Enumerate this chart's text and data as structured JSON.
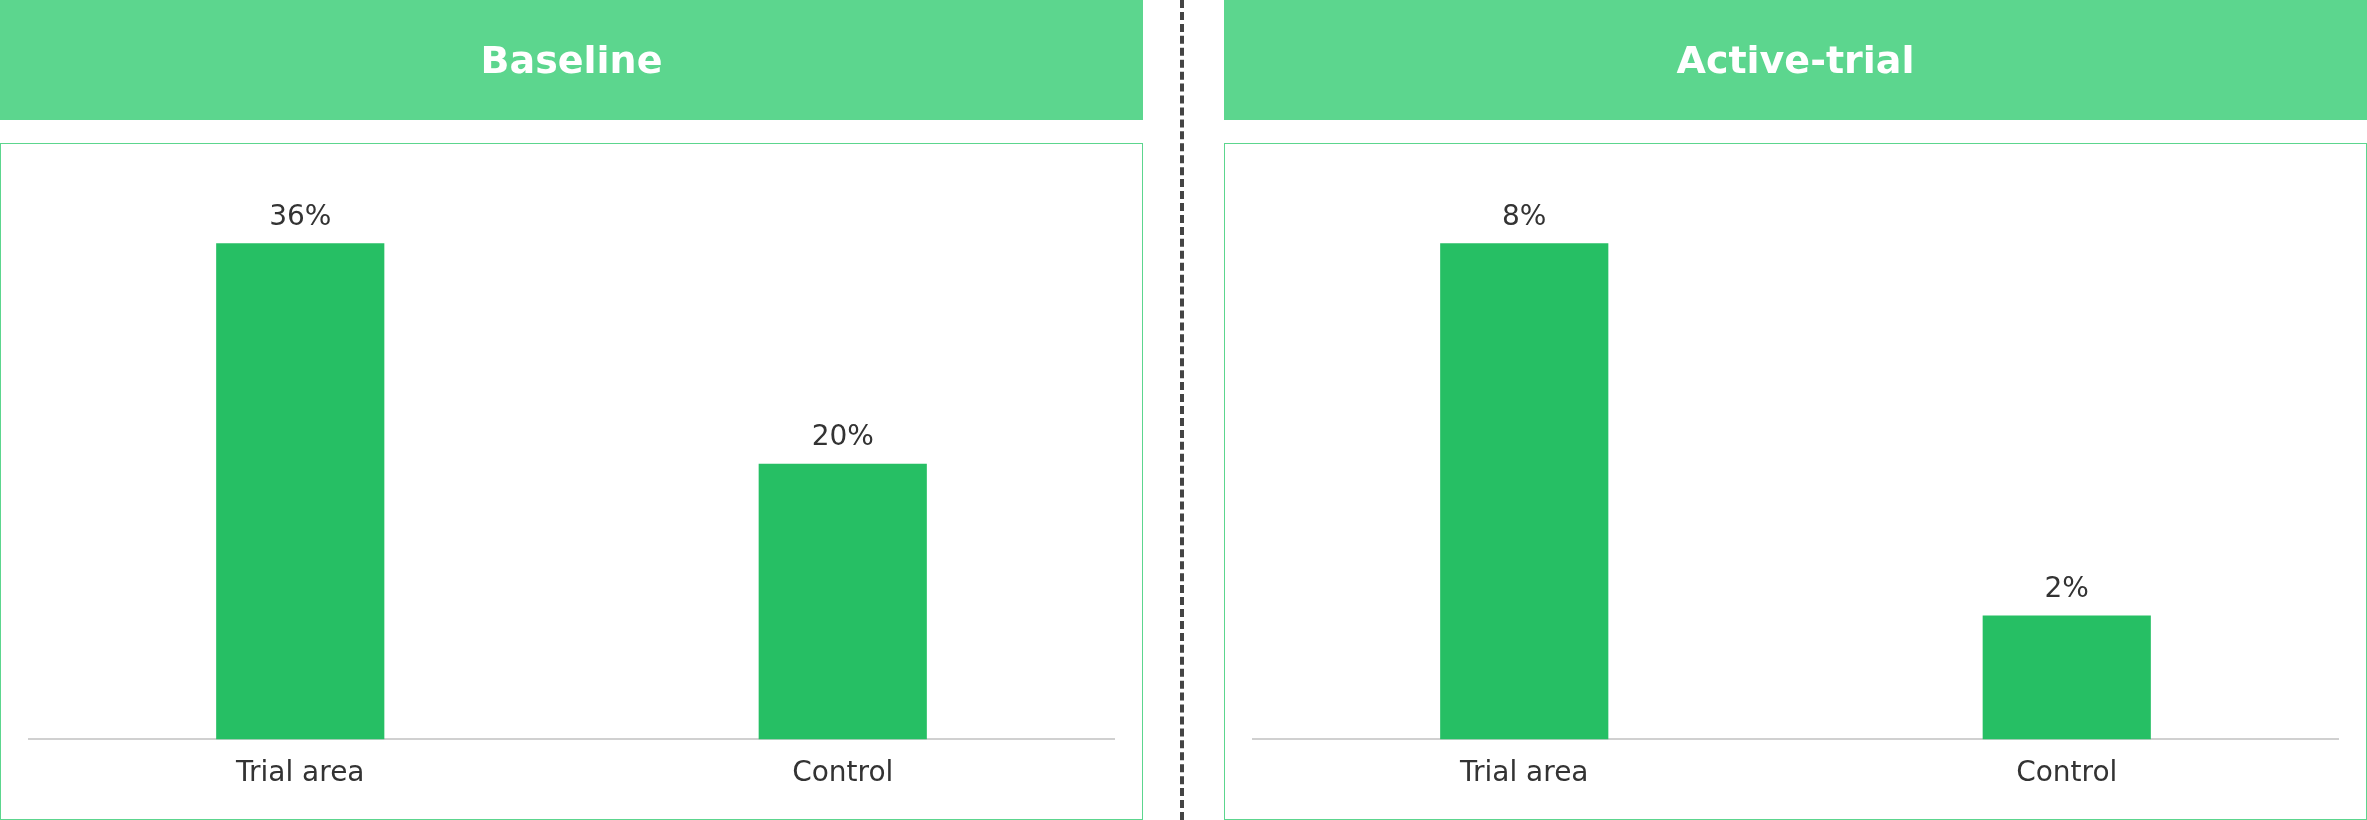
{
  "chart_data": [
    {
      "type": "bar",
      "title": "Baseline",
      "categories": [
        "Trial area",
        "Control"
      ],
      "values": [
        36,
        20
      ],
      "value_labels": [
        "36%",
        "20%"
      ],
      "color": "#26bf64",
      "grid": false,
      "legend": false,
      "tick_labels": "x"
    },
    {
      "type": "bar",
      "title": "Active-trial",
      "categories": [
        "Trial area",
        "Control"
      ],
      "values": [
        8,
        2
      ],
      "value_labels": [
        "8%",
        "2%"
      ],
      "color": "#26bf64",
      "grid": false,
      "legend": false,
      "tick_labels": "x"
    }
  ]
}
